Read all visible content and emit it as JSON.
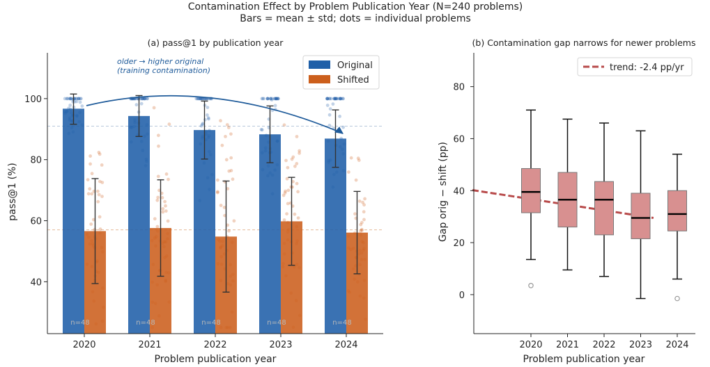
{
  "figure": {
    "title_line1": "Contamination Effect by Problem Publication Year  (N=240 problems)",
    "title_line2": "Bars = mean ± std; dots = individual problems"
  },
  "colors": {
    "original": "#1f5fa8",
    "shifted": "#cc5f1c",
    "box_fill": "#d89090",
    "trend": "#b84a4a",
    "arrow": "#1f5b9a"
  },
  "chart_data": [
    {
      "type": "bar",
      "title": "(a)  pass@1 by publication year",
      "xlabel": "Problem publication year",
      "ylabel": "pass@1 (%)",
      "ylim": [
        23,
        115
      ],
      "yticks": [
        40,
        60,
        80,
        100
      ],
      "categories": [
        "2020",
        "2021",
        "2022",
        "2023",
        "2024"
      ],
      "series": [
        {
          "name": "Original",
          "values": [
            96.7,
            94.3,
            89.7,
            88.3,
            86.9
          ],
          "std": [
            5.1,
            6.7,
            9.5,
            9.3,
            9.4
          ]
        },
        {
          "name": "Shifted",
          "values": [
            56.6,
            57.6,
            54.8,
            59.8,
            56.1
          ],
          "std": [
            17.2,
            15.8,
            18.2,
            14.4,
            13.5
          ]
        }
      ],
      "reference_lines": [
        91.0,
        57.0
      ],
      "n_labels": [
        "n=48",
        "n=48",
        "n=48",
        "n=48",
        "n=48"
      ],
      "annotation_line1": "older → higher original",
      "annotation_line2": "(training contamination)",
      "legend_position": "top-right",
      "grid": false
    },
    {
      "type": "box",
      "title": "(b)  Contamination gap narrows for newer problems",
      "xlabel": "Problem publication year",
      "ylabel": "Gap  orig − shift  (pp)",
      "ylim": [
        -15,
        93
      ],
      "yticks": [
        0,
        20,
        40,
        60,
        80
      ],
      "categories": [
        "2020",
        "2021",
        "2022",
        "2023",
        "2024"
      ],
      "boxes": [
        {
          "whisker_low": 13.5,
          "q1": 31.5,
          "median": 39.5,
          "q3": 48.5,
          "whisker_high": 71,
          "outliers": [
            3.5
          ]
        },
        {
          "whisker_low": 9.5,
          "q1": 26,
          "median": 36.5,
          "q3": 47,
          "whisker_high": 67.5,
          "outliers": []
        },
        {
          "whisker_low": 7,
          "q1": 23,
          "median": 36.5,
          "q3": 43.5,
          "whisker_high": 66,
          "outliers": []
        },
        {
          "whisker_low": -1.5,
          "q1": 21.5,
          "median": 29.5,
          "q3": 39,
          "whisker_high": 63,
          "outliers": []
        },
        {
          "whisker_low": 6,
          "q1": 24.5,
          "median": 31,
          "q3": 40,
          "whisker_high": 54,
          "outliers": [
            -1.5
          ]
        }
      ],
      "trend": {
        "label": "trend: -2.4 pp/yr",
        "slope": -2.4,
        "start": [
          2018.4,
          40.2
        ],
        "end": [
          2023.35,
          29.5
        ]
      },
      "legend_position": "top-right",
      "grid": false
    }
  ]
}
